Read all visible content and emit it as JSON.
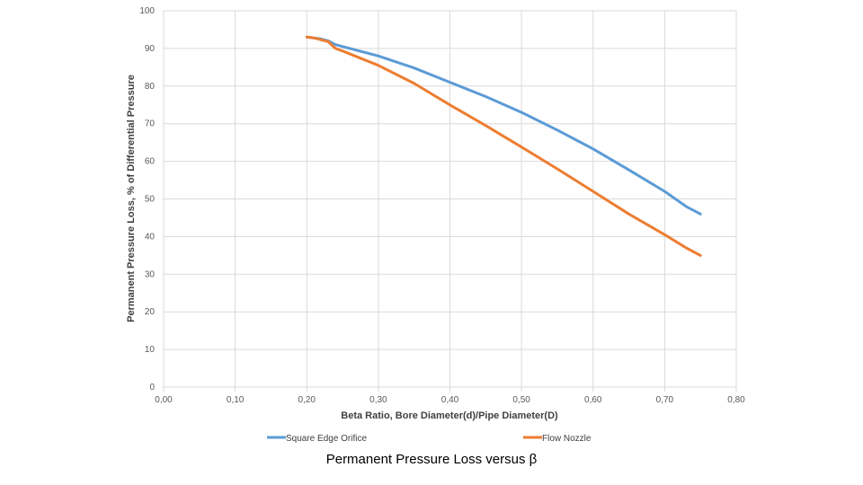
{
  "caption": "Permanent Pressure Loss versus β",
  "colors": {
    "series_1": "#5b9bd5",
    "series_2": "#ed7d31",
    "grid": "#d9d9d9",
    "text": "#595959"
  },
  "chart_data": {
    "type": "line",
    "title": "",
    "xlabel": "Beta Ratio, Bore Diameter(d)/Pipe Diameter(D)",
    "ylabel": "Permanent Pressure Loss, % of Differential Pressure",
    "xlim": [
      0,
      0.8
    ],
    "ylim": [
      0,
      100
    ],
    "x_ticks": [
      0,
      0.1,
      0.2,
      0.3,
      0.4,
      0.5,
      0.6,
      0.7,
      0.8
    ],
    "x_tick_labels": [
      "0,00",
      "0,10",
      "0,20",
      "0,30",
      "0,40",
      "0,50",
      "0,60",
      "0,70",
      "0,80"
    ],
    "y_ticks": [
      0,
      10,
      20,
      30,
      40,
      50,
      60,
      70,
      80,
      90,
      100
    ],
    "y_tick_labels": [
      "0",
      "10",
      "20",
      "30",
      "40",
      "50",
      "60",
      "70",
      "80",
      "90",
      "100"
    ],
    "grid": true,
    "legend_position": "bottom",
    "series": [
      {
        "name": "Square Edge Orifice",
        "color": "#5b9bd5",
        "points": [
          [
            0.2,
            93
          ],
          [
            0.21,
            92.8
          ],
          [
            0.22,
            92.5
          ],
          [
            0.23,
            92
          ],
          [
            0.24,
            91
          ],
          [
            0.25,
            90.5
          ],
          [
            0.3,
            88
          ],
          [
            0.35,
            84.8
          ],
          [
            0.4,
            81
          ],
          [
            0.45,
            77.2
          ],
          [
            0.5,
            73
          ],
          [
            0.55,
            68.3
          ],
          [
            0.6,
            63.3
          ],
          [
            0.65,
            57.7
          ],
          [
            0.7,
            52
          ],
          [
            0.73,
            48
          ],
          [
            0.75,
            46
          ]
        ]
      },
      {
        "name": "Flow Nozzle",
        "color": "#ed7d31",
        "points": [
          [
            0.2,
            93
          ],
          [
            0.21,
            92.8
          ],
          [
            0.22,
            92.3
          ],
          [
            0.23,
            91.8
          ],
          [
            0.24,
            90
          ],
          [
            0.25,
            89.3
          ],
          [
            0.3,
            85.5
          ],
          [
            0.35,
            80.7
          ],
          [
            0.4,
            75
          ],
          [
            0.45,
            69.5
          ],
          [
            0.5,
            63.8
          ],
          [
            0.55,
            58
          ],
          [
            0.6,
            52
          ],
          [
            0.65,
            46
          ],
          [
            0.7,
            40.5
          ],
          [
            0.73,
            37
          ],
          [
            0.75,
            35
          ]
        ]
      }
    ]
  }
}
